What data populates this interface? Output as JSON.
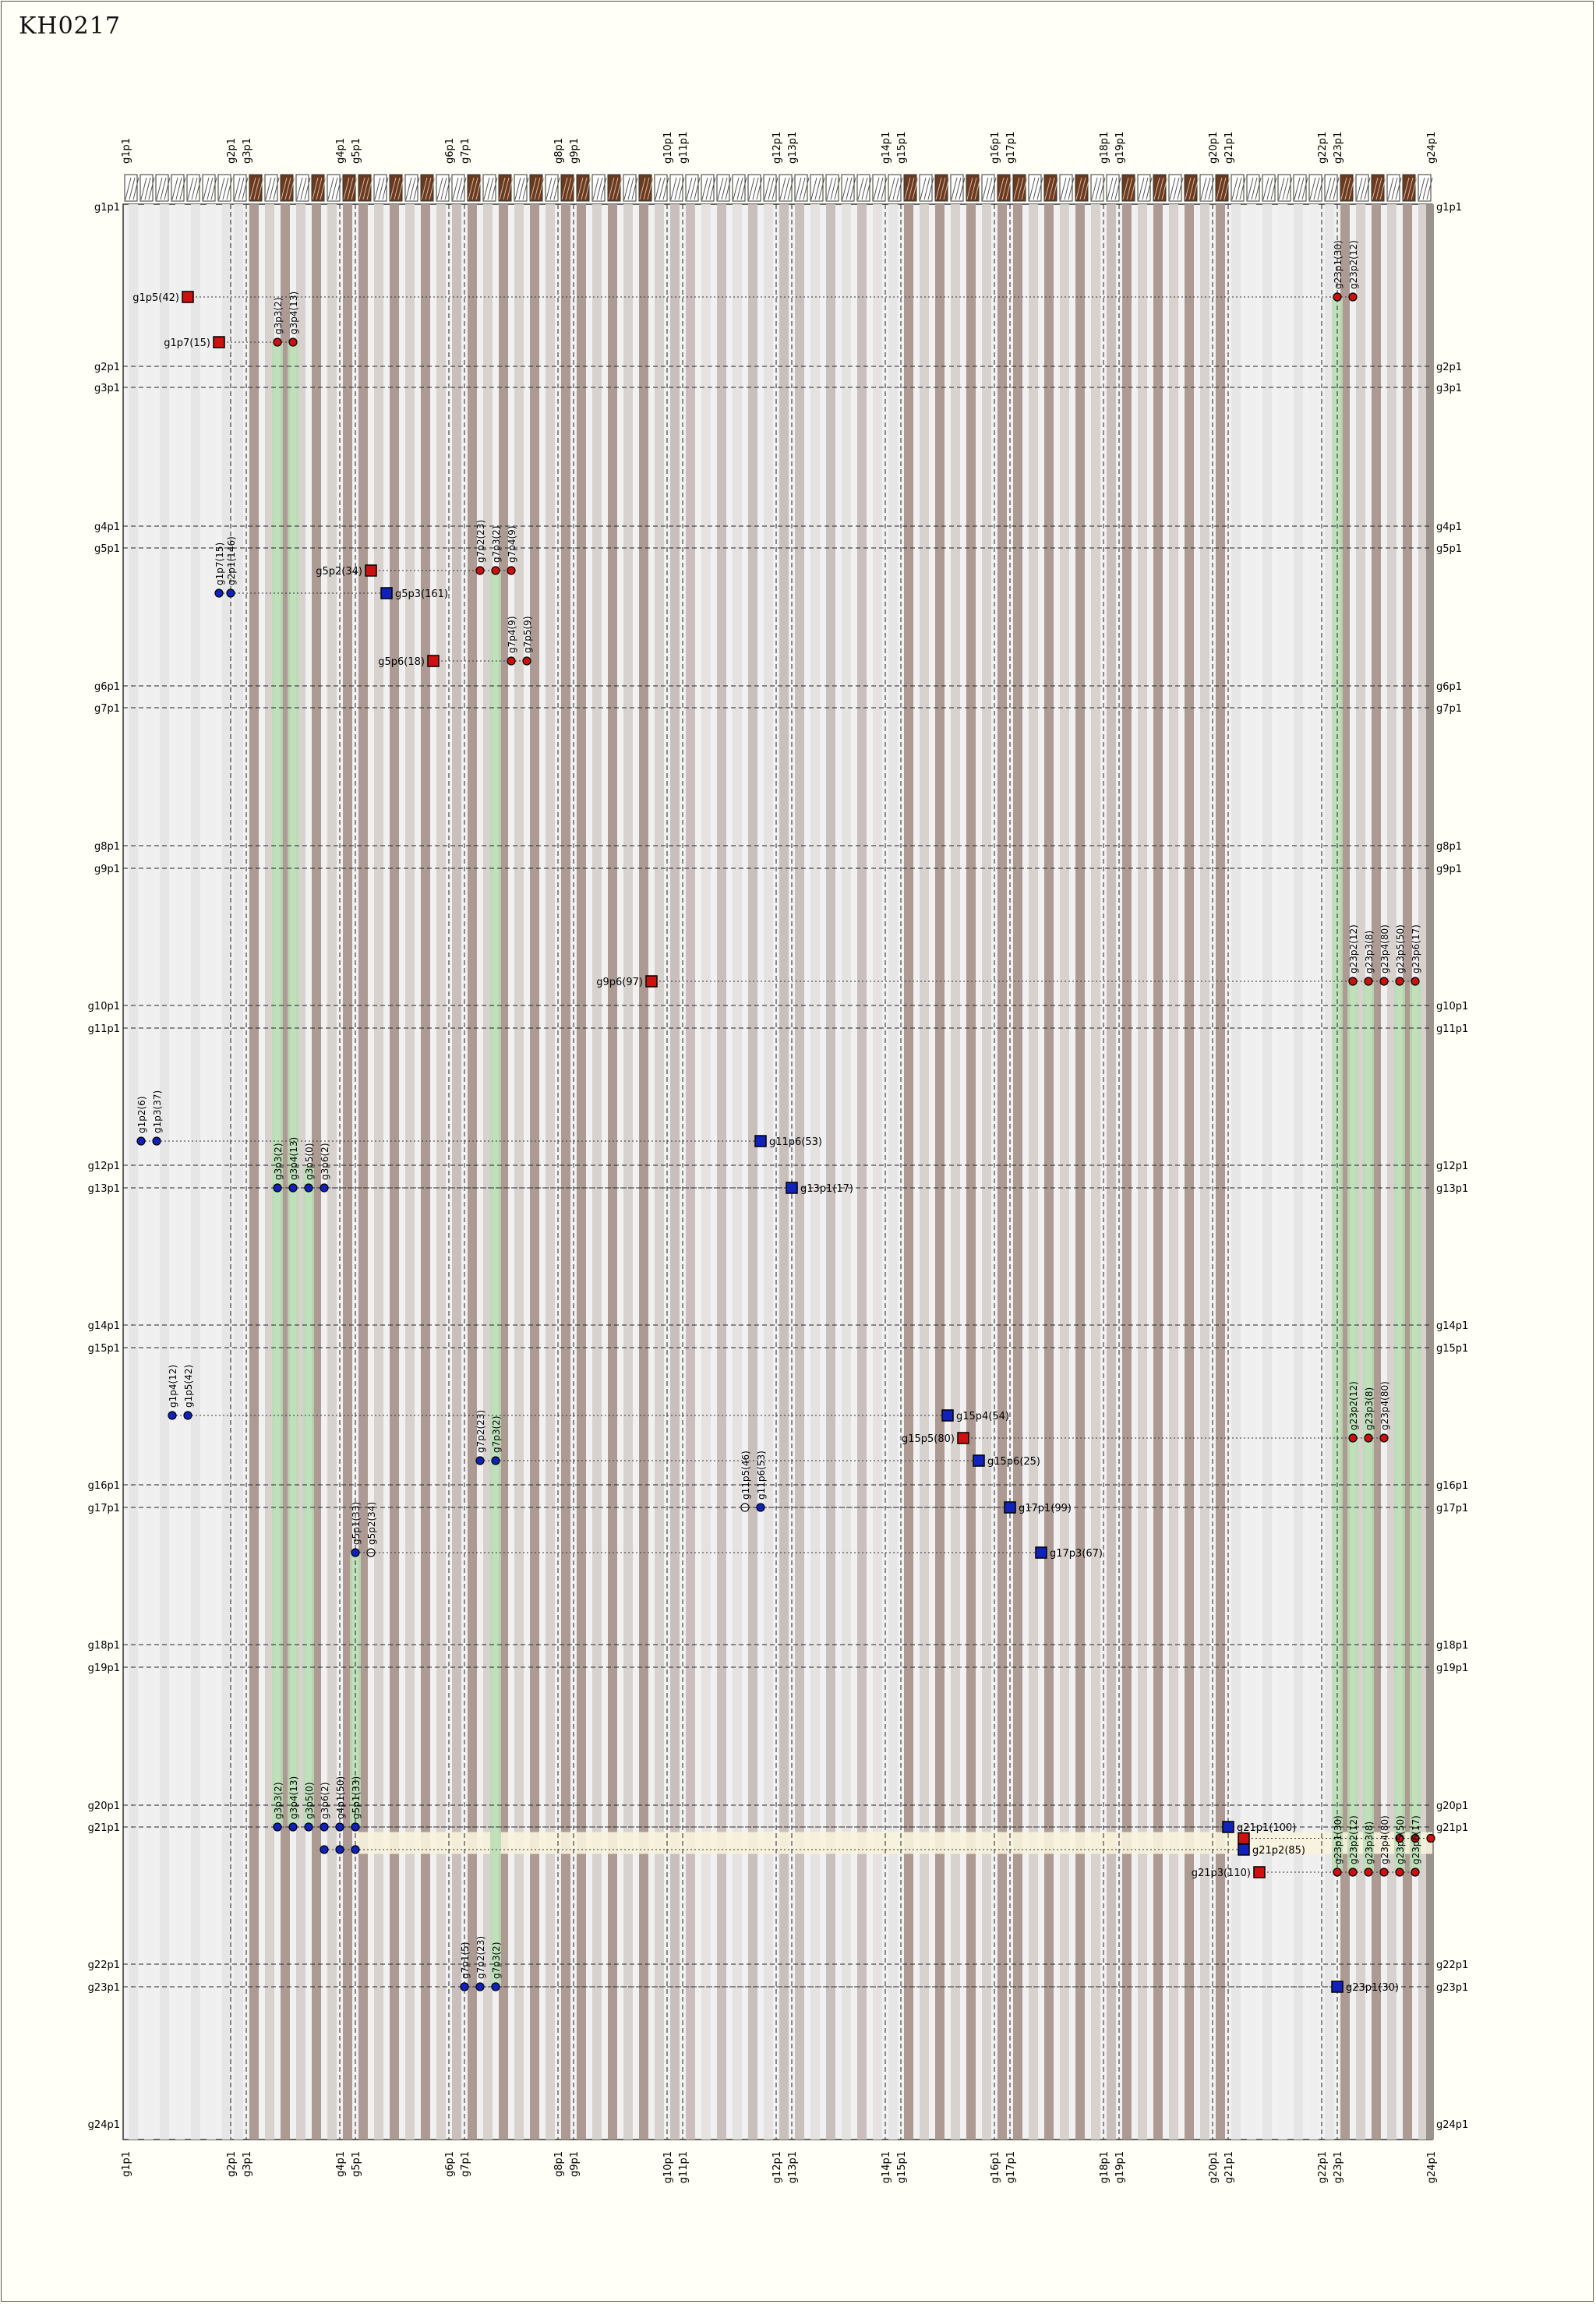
{
  "title": "KH0217",
  "colors": {
    "band_light": "#e4e4e4",
    "band_dark": "#ad9b93",
    "band_mid": "#c9bfbd",
    "green": "#b7ddb3",
    "marker_red": "#cc1111",
    "marker_blue": "#1122bb",
    "header_brown": "#6a3a20",
    "highlight": "#f8f3dc"
  },
  "groups": [
    "g1p1",
    "g2p1",
    "g3p1",
    "g4p1",
    "g5p1",
    "g6p1",
    "g7p1",
    "g8p1",
    "g9p1",
    "g10p1",
    "g11p1",
    "g12p1",
    "g13p1",
    "g14p1",
    "g15p1",
    "g16p1",
    "g17p1",
    "g18p1",
    "g19p1",
    "g20p1",
    "g21p1",
    "g22p1",
    "g23p1",
    "g24p1"
  ],
  "col_bands": [
    {
      "g": 1,
      "t": "l"
    },
    {
      "g": 2,
      "t": "l"
    },
    {
      "g": 3,
      "t": "d"
    },
    {
      "g": 4,
      "t": "d"
    },
    {
      "g": 5,
      "t": "d"
    },
    {
      "g": 6,
      "t": "m"
    },
    {
      "g": 7,
      "t": "d"
    },
    {
      "g": 8,
      "t": "d"
    },
    {
      "g": 9,
      "t": "d"
    },
    {
      "g": 10,
      "t": "m"
    },
    {
      "g": 11,
      "t": "m"
    },
    {
      "g": 12,
      "t": "m"
    },
    {
      "g": 13,
      "t": "m"
    },
    {
      "g": 14,
      "t": "l"
    },
    {
      "g": 15,
      "t": "d"
    },
    {
      "g": 16,
      "t": "d"
    },
    {
      "g": 17,
      "t": "d"
    },
    {
      "g": 18,
      "t": "m"
    },
    {
      "g": 19,
      "t": "d"
    },
    {
      "g": 20,
      "t": "d"
    },
    {
      "g": 21,
      "t": "l"
    },
    {
      "g": 22,
      "t": "l"
    },
    {
      "g": 23,
      "t": "d"
    }
  ],
  "green_cols": [
    {
      "x1": "g3p3",
      "y1": "g1p7",
      "y2": "g21p1"
    },
    {
      "x1": "g3p4",
      "y1": "g1p7",
      "y2": "g21p1"
    },
    {
      "x1": "g3p5",
      "y1": "g12p1",
      "y2": "g21p1"
    },
    {
      "x1": "g5p1",
      "y1": "g17p3",
      "y2": "g21p1"
    },
    {
      "x1": "g7p3",
      "y1": "g5p2",
      "y2": "g23p1"
    },
    {
      "x1": "g23p1",
      "y1": "g1p5",
      "y2": "g21p3"
    },
    {
      "x1": "g23p2",
      "y1": "g9p6",
      "y2": "g21p3"
    },
    {
      "x1": "g23p3",
      "y1": "g9p6",
      "y2": "g21p3"
    },
    {
      "x1": "g23p5",
      "y1": "g9p6",
      "y2": "g21p3"
    },
    {
      "x1": "g23p6",
      "y1": "g9p6",
      "y2": "g21p3"
    }
  ],
  "markers": [
    {
      "kind": "sq",
      "color": "r",
      "x": "g1p5",
      "y": "g1p5",
      "label": "g1p5(42)",
      "side": "left"
    },
    {
      "kind": "sq",
      "color": "r",
      "x": "g1p7",
      "y": "g1p7",
      "label": "g1p7(15)",
      "side": "left"
    },
    {
      "kind": "dot",
      "color": "r",
      "x": "g3p3",
      "y": "g1p7",
      "label": "g3p3(2)"
    },
    {
      "kind": "dot",
      "color": "r",
      "x": "g3p4",
      "y": "g1p7",
      "label": "g3p4(13)"
    },
    {
      "kind": "dot",
      "color": "r",
      "x": "g23p1",
      "y": "g1p5",
      "label": "g23p1(30)"
    },
    {
      "kind": "dot",
      "color": "r",
      "x": "g23p2",
      "y": "g1p5",
      "label": "g23p2(12)"
    },
    {
      "kind": "dot",
      "color": "b",
      "x": "g1p7",
      "y": "g5p3",
      "label": "g1p7(15)"
    },
    {
      "kind": "dot",
      "color": "b",
      "x": "g2p1",
      "y": "g5p3",
      "label": "g2p1(146)"
    },
    {
      "kind": "sq",
      "color": "r",
      "x": "g5p2",
      "y": "g5p2",
      "label": "g5p2(34)",
      "side": "left"
    },
    {
      "kind": "sq",
      "color": "b",
      "x": "g5p3",
      "y": "g5p3",
      "label": "g5p3(161)",
      "side": "right"
    },
    {
      "kind": "sq",
      "color": "r",
      "x": "g5p6",
      "y": "g5p6",
      "label": "g5p6(18)",
      "side": "left"
    },
    {
      "kind": "dot",
      "color": "r",
      "x": "g7p2",
      "y": "g5p2",
      "label": "g7p2(23)"
    },
    {
      "kind": "dot",
      "color": "r",
      "x": "g7p3",
      "y": "g5p2",
      "label": "g7p3(2)"
    },
    {
      "kind": "dot",
      "color": "r",
      "x": "g7p4",
      "y": "g5p2",
      "label": "g7p4(9)"
    },
    {
      "kind": "dot",
      "color": "r",
      "x": "g7p4",
      "y": "g5p6",
      "label": "g7p4(9)"
    },
    {
      "kind": "dot",
      "color": "r",
      "x": "g7p5",
      "y": "g5p6",
      "label": "g7p5(9)"
    },
    {
      "kind": "sq",
      "color": "r",
      "x": "g9p6",
      "y": "g9p6",
      "label": "g9p6(97)",
      "side": "left"
    },
    {
      "kind": "dot",
      "color": "r",
      "x": "g23p2",
      "y": "g9p6",
      "label": "g23p2(12)"
    },
    {
      "kind": "dot",
      "color": "r",
      "x": "g23p3",
      "y": "g9p6",
      "label": "g23p3(8)"
    },
    {
      "kind": "dot",
      "color": "r",
      "x": "g23p4",
      "y": "g9p6",
      "label": "g23p4(80)"
    },
    {
      "kind": "dot",
      "color": "r",
      "x": "g23p5",
      "y": "g9p6",
      "label": "g23p5(50)"
    },
    {
      "kind": "dot",
      "color": "r",
      "x": "g23p6",
      "y": "g9p6",
      "label": "g23p6(17)"
    },
    {
      "kind": "dot",
      "color": "b",
      "x": "g1p2",
      "y": "g11p6",
      "label": "g1p2(6)"
    },
    {
      "kind": "dot",
      "color": "b",
      "x": "g1p3",
      "y": "g11p6",
      "label": "g1p3(37)"
    },
    {
      "kind": "sq",
      "color": "b",
      "x": "g11p6",
      "y": "g11p6",
      "label": "g11p6(53)",
      "side": "right"
    },
    {
      "kind": "dot",
      "color": "b",
      "x": "g3p3",
      "y": "g13p1",
      "label": "g3p3(2)"
    },
    {
      "kind": "dot",
      "color": "b",
      "x": "g3p4",
      "y": "g13p1",
      "label": "g3p4(13)"
    },
    {
      "kind": "dot",
      "color": "b",
      "x": "g3p5",
      "y": "g13p1",
      "label": "g3p5(0)"
    },
    {
      "kind": "dot",
      "color": "b",
      "x": "g3p6",
      "y": "g13p1",
      "label": "g3p6(2)"
    },
    {
      "kind": "sq",
      "color": "b",
      "x": "g13p1",
      "y": "g13p1",
      "label": "g13p1(17)",
      "side": "right"
    },
    {
      "kind": "dot",
      "color": "b",
      "x": "g1p4",
      "y": "g15p4",
      "label": "g1p4(12)"
    },
    {
      "kind": "dot",
      "color": "b",
      "x": "g1p5",
      "y": "g15p4",
      "label": "g1p5(42)"
    },
    {
      "kind": "sq",
      "color": "b",
      "x": "g15p4",
      "y": "g15p4",
      "label": "g15p4(54)",
      "side": "right"
    },
    {
      "kind": "sq",
      "color": "r",
      "x": "g15p5",
      "y": "g15p5",
      "label": "g15p5(80)",
      "side": "left"
    },
    {
      "kind": "dot",
      "color": "r",
      "x": "g23p2",
      "y": "g15p5",
      "label": "g23p2(12)"
    },
    {
      "kind": "dot",
      "color": "r",
      "x": "g23p3",
      "y": "g15p5",
      "label": "g23p3(8)"
    },
    {
      "kind": "dot",
      "color": "r",
      "x": "g23p4",
      "y": "g15p5",
      "label": "g23p4(80)"
    },
    {
      "kind": "dot",
      "color": "b",
      "x": "g7p2",
      "y": "g15p6",
      "label": "g7p2(23)"
    },
    {
      "kind": "dot",
      "color": "b",
      "x": "g7p3",
      "y": "g15p6",
      "label": "g7p3(2)"
    },
    {
      "kind": "sq",
      "color": "b",
      "x": "g15p6",
      "y": "g15p6",
      "label": "g15p6(25)",
      "side": "right"
    },
    {
      "kind": "dot",
      "color": "b",
      "x": "g11p5",
      "y": "g17p1",
      "label": "g11p5(46)",
      "hollow": true
    },
    {
      "kind": "dot",
      "color": "b",
      "x": "g11p6",
      "y": "g17p1",
      "label": "g11p6(53)"
    },
    {
      "kind": "sq",
      "color": "b",
      "x": "g17p1",
      "y": "g17p1",
      "label": "g17p1(99)",
      "side": "right"
    },
    {
      "kind": "dot",
      "color": "b",
      "x": "g5p1",
      "y": "g17p3",
      "label": "g5p1(33)"
    },
    {
      "kind": "dot",
      "color": "b",
      "x": "g5p2",
      "y": "g17p3",
      "label": "g5p2(34)",
      "hollow": true
    },
    {
      "kind": "sq",
      "color": "b",
      "x": "g17p3",
      "y": "g17p3",
      "label": "g17p3(67)",
      "side": "right"
    },
    {
      "kind": "dot",
      "color": "b",
      "x": "g3p3",
      "y": "g21p1",
      "label": "g3p3(2)"
    },
    {
      "kind": "dot",
      "color": "b",
      "x": "g3p4",
      "y": "g21p1",
      "label": "g3p4(13)"
    },
    {
      "kind": "dot",
      "color": "b",
      "x": "g3p5",
      "y": "g21p1",
      "label": "g3p5(0)"
    },
    {
      "kind": "dot",
      "color": "b",
      "x": "g3p6",
      "y": "g21p1",
      "label": "g3p6(2)"
    },
    {
      "kind": "dot",
      "color": "b",
      "x": "g4p1",
      "y": "g21p1",
      "label": "g4p1(50)"
    },
    {
      "kind": "dot",
      "color": "b",
      "x": "g5p1",
      "y": "g21p1",
      "label": "g5p1(33)"
    },
    {
      "kind": "dot",
      "color": "b",
      "x": "g3p6",
      "y": "g21p2",
      "label": ""
    },
    {
      "kind": "dot",
      "color": "b",
      "x": "g4p1",
      "y": "g21p2",
      "label": ""
    },
    {
      "kind": "dot",
      "color": "b",
      "x": "g5p1",
      "y": "g21p2",
      "label": ""
    },
    {
      "kind": "sq",
      "color": "b",
      "x": "g21p1",
      "y": "g21p1",
      "label": "g21p1(100)",
      "side": "right"
    },
    {
      "kind": "sq",
      "color": "r",
      "x": "g21p2",
      "y": "g21p15",
      "label": "",
      "side": "right"
    },
    {
      "kind": "sq",
      "color": "b",
      "x": "g21p2",
      "y": "g21p2",
      "label": "g21p2(85)",
      "side": "right"
    },
    {
      "kind": "sq",
      "color": "r",
      "x": "g21p3",
      "y": "g21p3",
      "label": "g21p3(110)",
      "side": "left"
    },
    {
      "kind": "dot",
      "color": "r",
      "x": "g23p5",
      "y": "g21p15",
      "label": ""
    },
    {
      "kind": "dot",
      "color": "r",
      "x": "g23p6",
      "y": "g21p15",
      "label": ""
    },
    {
      "kind": "dot",
      "color": "r",
      "x": "g24p1",
      "y": "g21p15",
      "label": ""
    },
    {
      "kind": "dot",
      "color": "r",
      "x": "g23p1",
      "y": "g21p3",
      "label": "g23p1(30)"
    },
    {
      "kind": "dot",
      "color": "r",
      "x": "g23p2",
      "y": "g21p3",
      "label": "g23p2(12)"
    },
    {
      "kind": "dot",
      "color": "r",
      "x": "g23p3",
      "y": "g21p3",
      "label": "g23p3(8)"
    },
    {
      "kind": "dot",
      "color": "r",
      "x": "g23p4",
      "y": "g21p3",
      "label": "g23p4(80)"
    },
    {
      "kind": "dot",
      "color": "r",
      "x": "g23p5",
      "y": "g21p3",
      "label": "g23p5(50)"
    },
    {
      "kind": "dot",
      "color": "r",
      "x": "g23p6",
      "y": "g21p3",
      "label": "g23p6(17)"
    },
    {
      "kind": "dot",
      "color": "b",
      "x": "g7p1",
      "y": "g23p1",
      "label": "g7p1(5)"
    },
    {
      "kind": "dot",
      "color": "b",
      "x": "g7p2",
      "y": "g23p1",
      "label": "g7p2(23)"
    },
    {
      "kind": "dot",
      "color": "b",
      "x": "g7p3",
      "y": "g23p1",
      "label": "g7p3(2)"
    },
    {
      "kind": "sq",
      "color": "b",
      "x": "g23p1",
      "y": "g23p1",
      "label": "g23p1(30)",
      "side": "right"
    }
  ]
}
